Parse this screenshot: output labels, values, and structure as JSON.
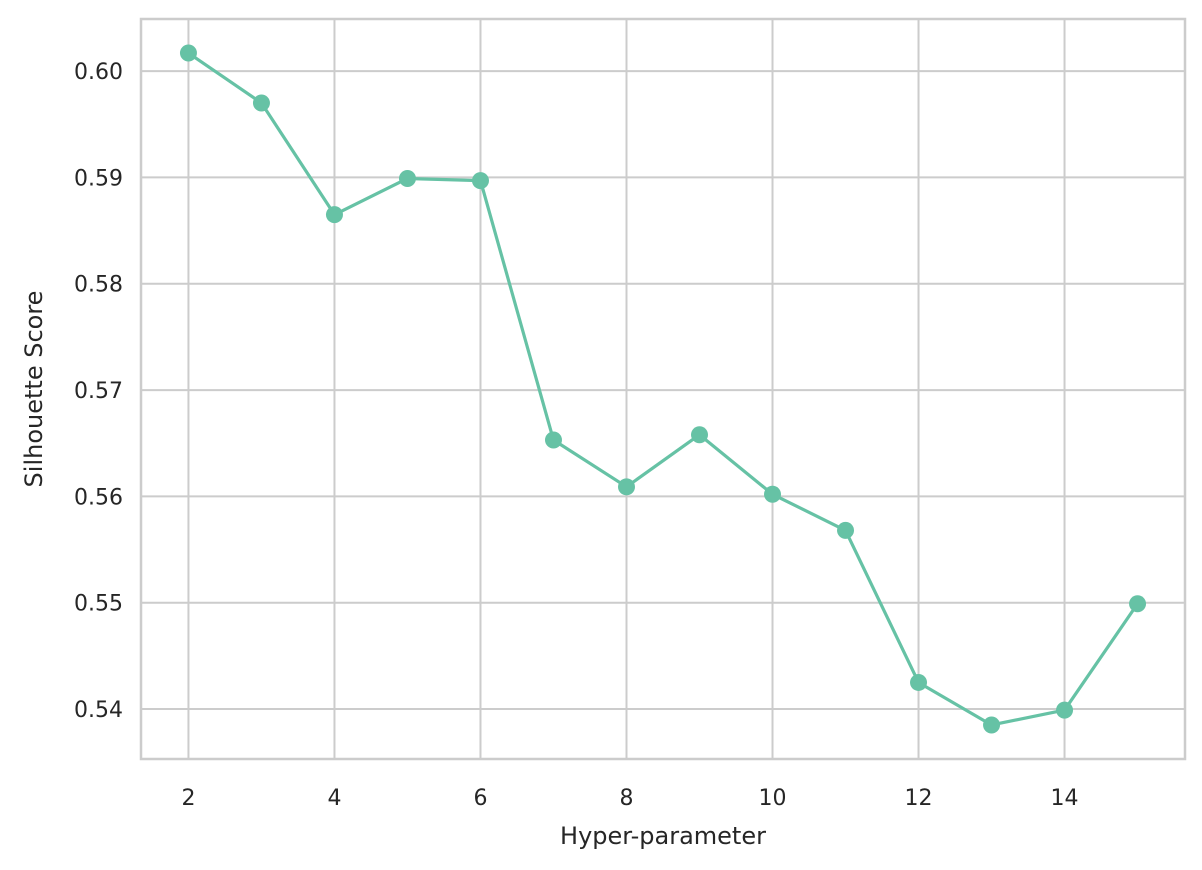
{
  "chart_data": {
    "type": "line",
    "title": "",
    "xlabel": "Hyper-parameter",
    "ylabel": "Silhouette Score",
    "x": [
      2,
      3,
      4,
      5,
      6,
      7,
      8,
      9,
      10,
      11,
      12,
      13,
      14,
      15
    ],
    "series": [
      {
        "values": [
          0.6017,
          0.597,
          0.5865,
          0.5899,
          0.5897,
          0.5653,
          0.5609,
          0.5658,
          0.5602,
          0.5568,
          0.5425,
          0.5385,
          0.5399,
          0.5499
        ],
        "color": "#66c2a5",
        "marker": "circle"
      }
    ],
    "xlim": [
      1.35,
      15.65
    ],
    "ylim": [
      0.5353,
      0.6049
    ],
    "xticks": [
      2,
      4,
      6,
      8,
      10,
      12,
      14
    ],
    "xtick_labels": [
      "2",
      "4",
      "6",
      "8",
      "10",
      "12",
      "14"
    ],
    "yticks": [
      0.54,
      0.55,
      0.56,
      0.57,
      0.58,
      0.59,
      0.6
    ],
    "ytick_labels": [
      "0.54",
      "0.55",
      "0.56",
      "0.57",
      "0.58",
      "0.59",
      "0.60"
    ],
    "grid": true,
    "legend": "none",
    "colors": {
      "grid": "#cccccc",
      "spine": "#cccccc",
      "text": "#262626"
    }
  }
}
